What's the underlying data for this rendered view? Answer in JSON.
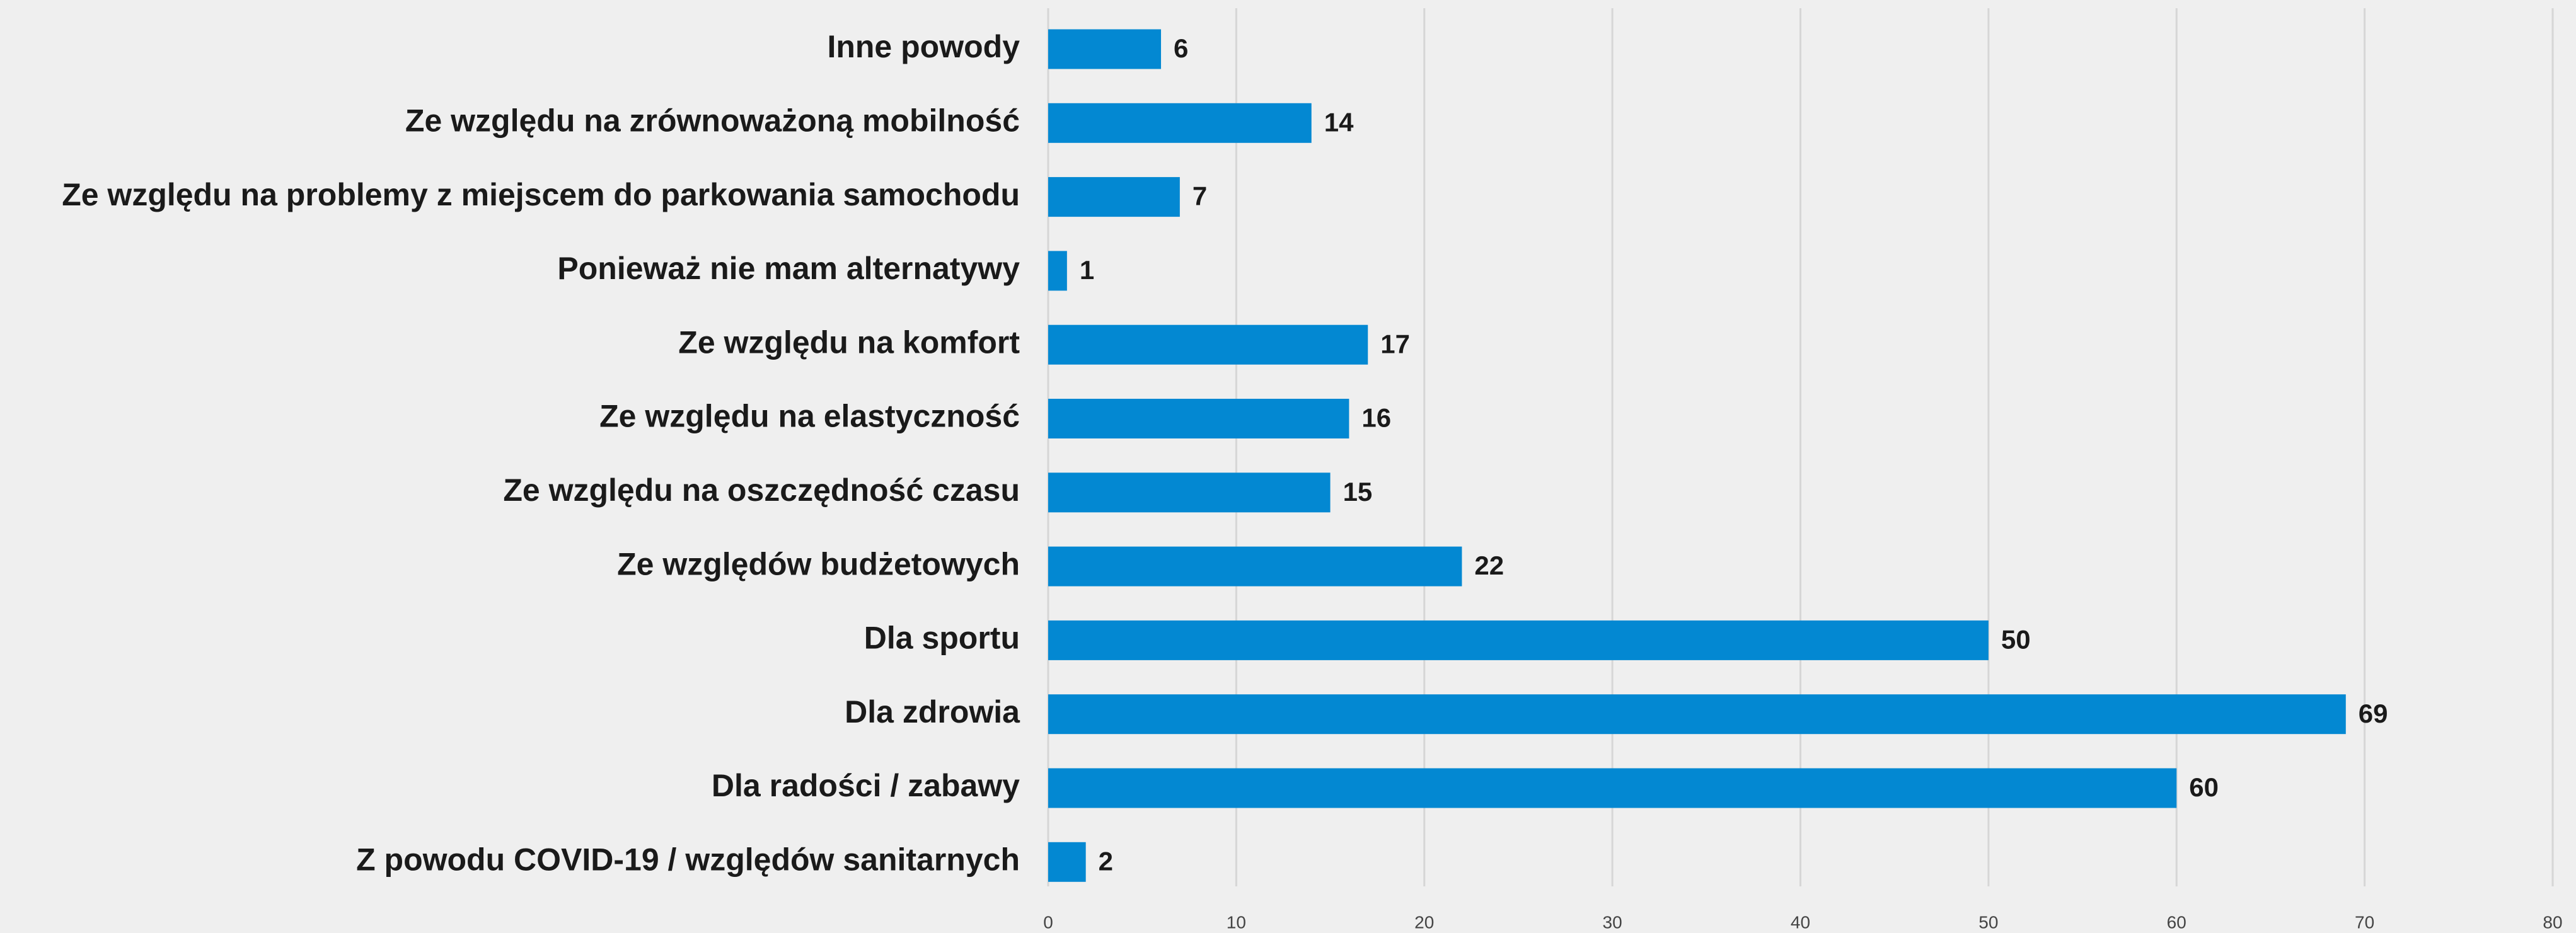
{
  "chart_data": {
    "type": "bar",
    "orientation": "horizontal",
    "categories": [
      "Inne powody",
      "Ze względu na zrównoważoną mobilność",
      "Ze względu na problemy z miejscem do parkowania samochodu",
      "Ponieważ nie mam alternatywy",
      "Ze względu na komfort",
      "Ze względu na elastyczność",
      "Ze względu na oszczędność czasu",
      "Ze względów budżetowych",
      "Dla sportu",
      "Dla zdrowia",
      "Dla radości / zabawy",
      "Z powodu COVID-19 / względów sanitarnych"
    ],
    "values": [
      6,
      14,
      7,
      1,
      17,
      16,
      15,
      22,
      50,
      69,
      60,
      2
    ],
    "color": "#0388d2",
    "xlim": [
      0,
      80
    ],
    "xticks": [
      0,
      10,
      20,
      30,
      40,
      50,
      60,
      70,
      80
    ],
    "grid": true
  }
}
